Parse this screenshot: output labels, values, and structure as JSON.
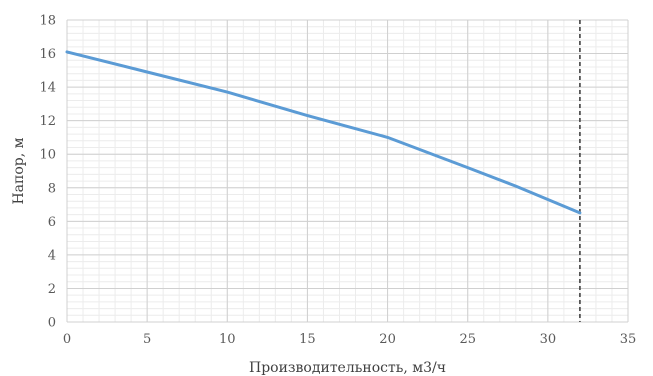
{
  "chart_data": {
    "type": "line",
    "title": "",
    "xlabel": "Производительность, м3/ч",
    "ylabel": "Напор, м",
    "xlim": [
      0,
      35
    ],
    "ylim": [
      0,
      18
    ],
    "x_ticks": [
      0,
      5,
      10,
      15,
      20,
      25,
      30,
      35
    ],
    "y_ticks": [
      0,
      2,
      4,
      6,
      8,
      10,
      12,
      14,
      16,
      18
    ],
    "x_tick_labels": [
      "0",
      "5",
      "10",
      "15",
      "20",
      "25",
      "30",
      "35"
    ],
    "y_tick_labels": [
      "0",
      "2",
      "4",
      "6",
      "8",
      "10",
      "12",
      "14",
      "16",
      "18"
    ],
    "grid": true,
    "minor_grid": true,
    "legend": "none",
    "series": [
      {
        "color": "#5b9bd5",
        "x": [
          0,
          5,
          10,
          15,
          20,
          25,
          28,
          32
        ],
        "y": [
          16.1,
          14.9,
          13.7,
          12.3,
          11.0,
          9.2,
          8.1,
          6.5
        ]
      }
    ],
    "reference_line": {
      "x": 32,
      "style": "dashed",
      "color": "#404040"
    }
  }
}
